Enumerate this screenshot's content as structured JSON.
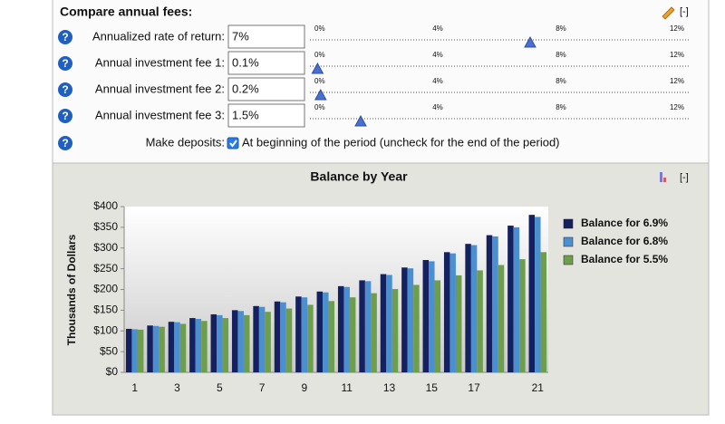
{
  "panel": {
    "title": "Compare annual fees:",
    "collapse": "[-]",
    "help_icon": "?",
    "slider_ticks": [
      {
        "value": 0,
        "label": "0%"
      },
      {
        "value": 4,
        "label": "4%"
      },
      {
        "value": 8,
        "label": "8%"
      },
      {
        "value": 12,
        "label": "12%"
      }
    ],
    "fields": [
      {
        "label": "Annualized rate of return:",
        "input": "7%",
        "value": 7
      },
      {
        "label": "Annual investment fee 1:",
        "input": "0.1%",
        "value": 0.1
      },
      {
        "label": "Annual investment fee 2:",
        "input": "0.2%",
        "value": 0.2
      },
      {
        "label": "Annual investment fee 3:",
        "input": "1.5%",
        "value": 1.5
      }
    ],
    "deposits": {
      "label": "Make deposits:",
      "checked": true,
      "text": "At beginning of the period (uncheck for the end of the period)"
    }
  },
  "chart_data": {
    "type": "bar",
    "title": "Balance by Year",
    "collapse": "[-]",
    "y_label": "Thousands of Dollars",
    "categories": [
      "1",
      null,
      "3",
      null,
      "5",
      null,
      "7",
      null,
      "9",
      null,
      "11",
      null,
      "13",
      null,
      "15",
      null,
      "17",
      null,
      null,
      "21"
    ],
    "series": [
      {
        "name": "Balance for 6.9%",
        "color": "#15205e",
        "values": [
          105,
          113,
          122,
          131,
          140,
          150,
          160,
          171,
          183,
          195,
          208,
          222,
          237,
          253,
          271,
          290,
          310,
          331,
          354,
          380
        ]
      },
      {
        "name": "Balance for 6.8%",
        "color": "#4b8fd1",
        "values": [
          104,
          112,
          121,
          129,
          138,
          148,
          158,
          169,
          181,
          193,
          206,
          220,
          235,
          251,
          268,
          287,
          307,
          328,
          350,
          375
        ]
      },
      {
        "name": "Balance for 5.5%",
        "color": "#6e9d4e",
        "values": [
          103,
          110,
          117,
          124,
          131,
          138,
          146,
          154,
          163,
          172,
          181,
          191,
          201,
          211,
          222,
          234,
          246,
          259,
          273,
          290
        ]
      }
    ],
    "ylim": [
      0,
      400
    ],
    "yticks": [
      {
        "value": 0,
        "label": "$0"
      },
      {
        "value": 50,
        "label": "$50"
      },
      {
        "value": 100,
        "label": "$100"
      },
      {
        "value": 150,
        "label": "$150"
      },
      {
        "value": 200,
        "label": "$200"
      },
      {
        "value": 250,
        "label": "$250"
      },
      {
        "value": 300,
        "label": "$300"
      },
      {
        "value": 350,
        "label": "$350"
      },
      {
        "value": 400,
        "label": "$400"
      }
    ],
    "legend": "right"
  }
}
